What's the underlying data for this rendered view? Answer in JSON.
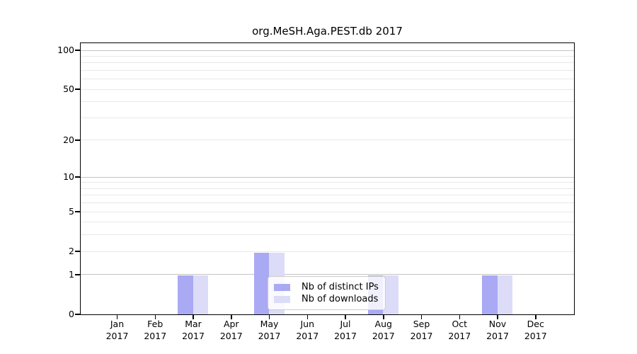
{
  "chart_data": {
    "type": "bar",
    "title": "org.MeSH.Aga.PEST.db 2017",
    "categories": [
      {
        "month": "Jan",
        "year": "2017"
      },
      {
        "month": "Feb",
        "year": "2017"
      },
      {
        "month": "Mar",
        "year": "2017"
      },
      {
        "month": "Apr",
        "year": "2017"
      },
      {
        "month": "May",
        "year": "2017"
      },
      {
        "month": "Jun",
        "year": "2017"
      },
      {
        "month": "Jul",
        "year": "2017"
      },
      {
        "month": "Aug",
        "year": "2017"
      },
      {
        "month": "Sep",
        "year": "2017"
      },
      {
        "month": "Oct",
        "year": "2017"
      },
      {
        "month": "Nov",
        "year": "2017"
      },
      {
        "month": "Dec",
        "year": "2017"
      }
    ],
    "series": [
      {
        "name": "Nb of distinct IPs",
        "color": "#a9a9f4",
        "values": [
          0,
          0,
          1,
          0,
          2,
          0,
          0,
          1,
          0,
          0,
          1,
          0
        ]
      },
      {
        "name": "Nb of downloads",
        "color": "#dcdcf8",
        "values": [
          0,
          0,
          1,
          0,
          2,
          0,
          0,
          1,
          0,
          0,
          1,
          0
        ]
      }
    ],
    "yscale": "log1p",
    "yticks": [
      0,
      1,
      2,
      5,
      10,
      20,
      50,
      100
    ],
    "ylim": [
      0,
      115
    ],
    "grid": {
      "major_values": [
        1,
        10,
        100
      ],
      "minor_values": [
        2,
        3,
        4,
        5,
        6,
        7,
        8,
        9,
        20,
        30,
        40,
        50,
        60,
        70,
        80,
        90
      ],
      "major_color": "#c3c3c3",
      "minor_color": "#e8e8e8"
    },
    "legend_position": "inside-bottom-center",
    "xlabel": "",
    "ylabel": ""
  }
}
